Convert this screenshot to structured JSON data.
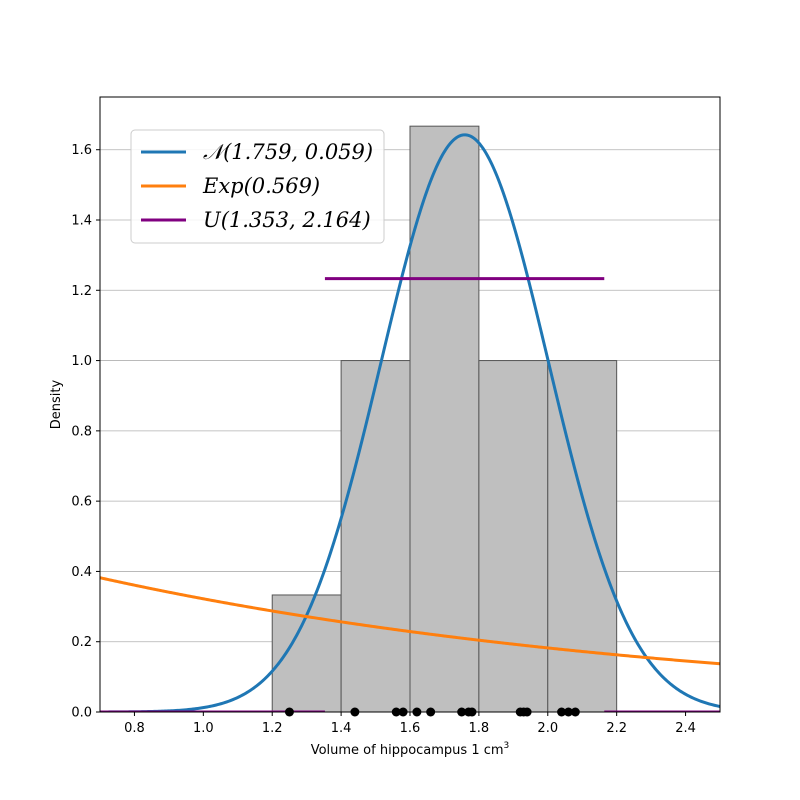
{
  "chart_data": {
    "type": "histogram",
    "xlabel": "Volume of hippocampus 1 cm",
    "xlabel_superscript": "3",
    "ylabel": "Density",
    "xlim": [
      0.7,
      2.5
    ],
    "ylim": [
      0,
      1.75
    ],
    "xticks": [
      "0.8",
      "1.0",
      "1.2",
      "1.4",
      "1.6",
      "1.8",
      "2.0",
      "2.2",
      "2.4"
    ],
    "yticks": [
      "0.0",
      "0.2",
      "0.4",
      "0.6",
      "0.8",
      "1.0",
      "1.2",
      "1.4",
      "1.6"
    ],
    "grid": "horizontal",
    "legend_position": "upper-left",
    "bins": [
      {
        "x0": 1.2,
        "x1": 1.4,
        "density": 0.333
      },
      {
        "x0": 1.4,
        "x1": 1.6,
        "density": 1.0
      },
      {
        "x0": 1.6,
        "x1": 1.8,
        "density": 1.667
      },
      {
        "x0": 1.8,
        "x1": 2.0,
        "density": 1.0
      },
      {
        "x0": 2.0,
        "x1": 2.2,
        "density": 1.0
      }
    ],
    "bar_color": "#bfbfbf",
    "bar_edge_color": "#555555",
    "observations": [
      1.25,
      1.44,
      1.56,
      1.58,
      1.62,
      1.66,
      1.75,
      1.77,
      1.78,
      1.92,
      1.93,
      1.94,
      2.04,
      2.06,
      2.08
    ],
    "series": [
      {
        "name": "𝒩(1.759, 0.059)",
        "type": "normal",
        "mean": 1.759,
        "variance": 0.059,
        "color": "#1f77b4"
      },
      {
        "name": "Exp(0.569)",
        "type": "exponential",
        "rate": 0.569,
        "color": "#ff7f0e"
      },
      {
        "name": "U(1.353, 2.164)",
        "type": "uniform",
        "a": 1.353,
        "b": 2.164,
        "color": "#800080"
      }
    ]
  }
}
